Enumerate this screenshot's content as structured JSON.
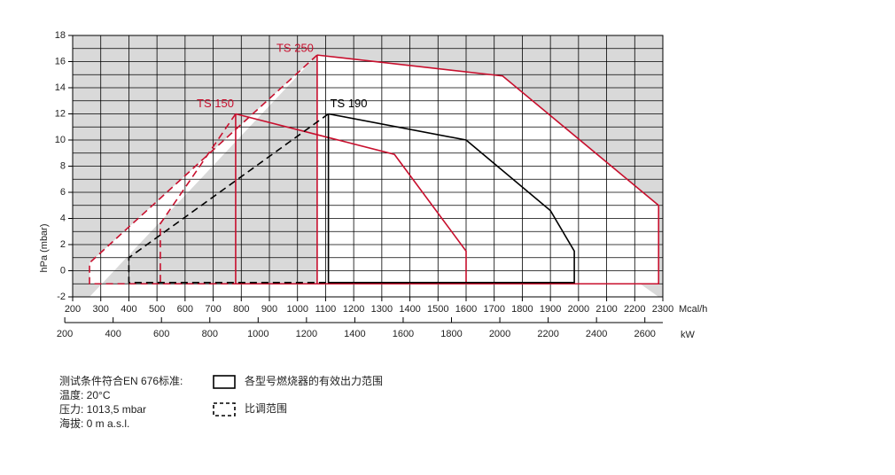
{
  "chart_data": {
    "type": "envelope",
    "y_label": "hPa (mbar)",
    "x_unit": "Mcal/h",
    "x2_unit": "kW",
    "xlim": [
      200,
      2300
    ],
    "xticks": [
      200,
      300,
      400,
      500,
      600,
      700,
      800,
      900,
      1000,
      1100,
      1200,
      1300,
      1400,
      1500,
      1600,
      1700,
      1800,
      1900,
      2000,
      2100,
      2200,
      2300
    ],
    "x2lim": [
      232.6,
      2674.4
    ],
    "x2ticks": [
      200,
      400,
      600,
      800,
      1000,
      1200,
      1400,
      1600,
      1800,
      2000,
      2200,
      2400,
      2600
    ],
    "ylim": [
      -2,
      18
    ],
    "yticks": [
      -2,
      0,
      2,
      4,
      6,
      8,
      10,
      12,
      14,
      16,
      18
    ],
    "ygrid_minor": [
      -1,
      1,
      3,
      5,
      7,
      9,
      11,
      13,
      15,
      17
    ],
    "grid": true,
    "outside_color": "#d9d9d9",
    "series": [
      {
        "name": "TS 250",
        "color": "#c8102e",
        "x": [
          1070,
          1730,
          2285,
          2285,
          1070,
          1070
        ],
        "values": [
          16.5,
          14.9,
          5,
          -1,
          -1,
          16.5
        ],
        "modulation_x": [
          1070,
          260,
          260,
          1070
        ],
        "modulation_values": [
          16.5,
          0.6,
          -1,
          -1
        ]
      },
      {
        "name": "TS 150",
        "color": "#c8102e",
        "x": [
          780,
          1345,
          1600,
          1600,
          780,
          780
        ],
        "values": [
          12,
          8.9,
          1.5,
          -1,
          -1,
          12
        ],
        "modulation_x": [
          780,
          512,
          512,
          780
        ],
        "modulation_values": [
          12,
          3.6,
          -1,
          -1
        ]
      },
      {
        "name": "TS 190",
        "color": "#000000",
        "x": [
          1110,
          1600,
          1900,
          1985,
          1985,
          1110,
          1110
        ],
        "values": [
          12,
          10,
          4.6,
          1.5,
          -0.9,
          -0.9,
          12
        ],
        "modulation_x": [
          1110,
          400,
          400,
          1110
        ],
        "modulation_values": [
          12,
          1,
          -0.9,
          -0.9
        ]
      }
    ],
    "legend": [
      {
        "label": "各型号燃烧器的有效出力范围",
        "style": "solid"
      },
      {
        "label": "比调范围",
        "style": "dashed"
      }
    ],
    "notes": [
      "测试条件符合EN 676标准:",
      "温度: 20°C",
      "压力: 1013,5 mbar",
      "海拔: 0 m a.s.l."
    ]
  }
}
